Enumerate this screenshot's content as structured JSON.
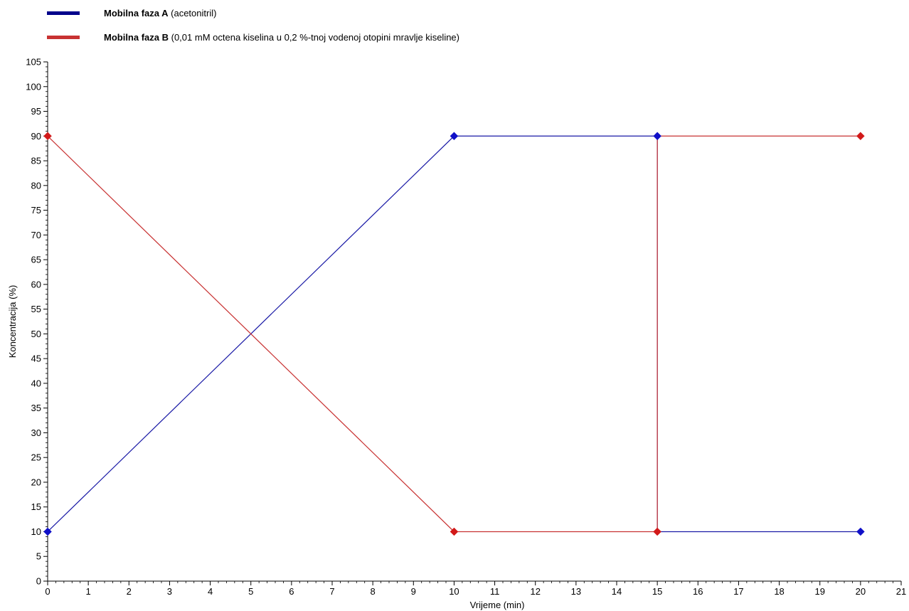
{
  "chart_data": {
    "type": "line",
    "xlabel": "Vrijeme (min)",
    "ylabel": "Koncentracija (%)",
    "xlim": [
      0,
      21
    ],
    "ylim": [
      0,
      105
    ],
    "x_ticks": [
      0,
      1,
      2,
      3,
      4,
      5,
      6,
      7,
      8,
      9,
      10,
      11,
      12,
      13,
      14,
      15,
      16,
      17,
      18,
      19,
      20,
      21
    ],
    "y_ticks": [
      0,
      5,
      10,
      15,
      20,
      25,
      30,
      35,
      40,
      45,
      50,
      55,
      60,
      65,
      70,
      75,
      80,
      85,
      90,
      95,
      100,
      105
    ],
    "grid": false,
    "legend_position": "top-left",
    "series": [
      {
        "name_bold": "Mobilna faza A",
        "name_rest": " (acetonitril)",
        "color": "#1a1aa6",
        "marker_color": "#1010c8",
        "x": [
          0,
          10,
          15,
          15,
          20
        ],
        "y": [
          10,
          90,
          90,
          10,
          10
        ],
        "marker_indices": [
          0,
          1,
          2,
          4
        ]
      },
      {
        "name_bold": "Mobilna faza B",
        "name_rest": " (0,01 mM octena  kiselina u 0,2 %-tnoj vodenoj otopini mravlje kiseline)",
        "color": "#c83232",
        "marker_color": "#d21919",
        "x": [
          0,
          10,
          15,
          15,
          20
        ],
        "y": [
          90,
          10,
          10,
          90,
          90
        ],
        "marker_indices": [
          0,
          1,
          2,
          4
        ]
      }
    ]
  }
}
